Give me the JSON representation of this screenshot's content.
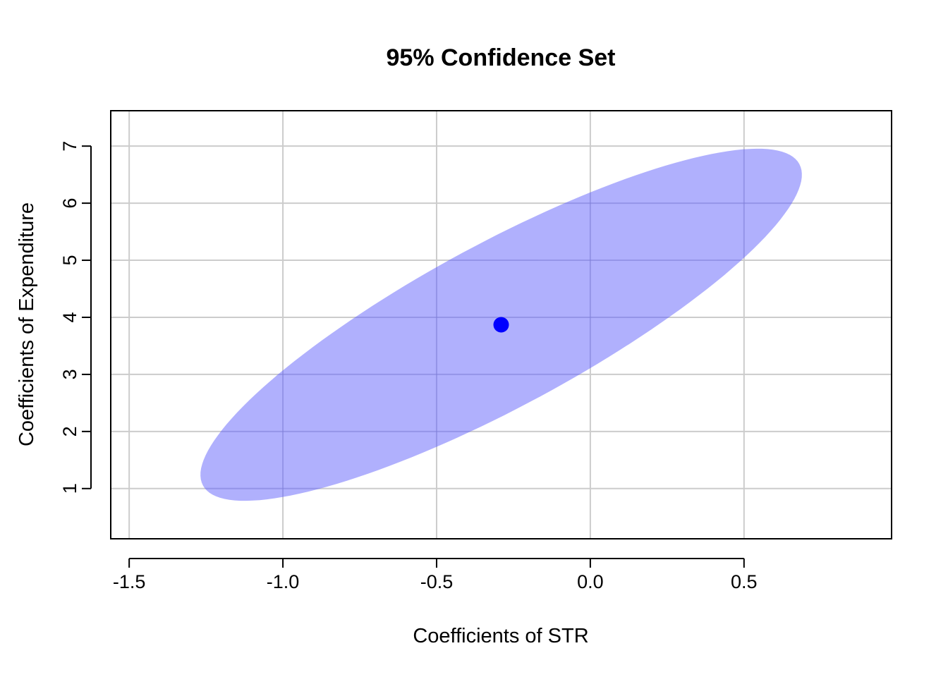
{
  "chart_data": {
    "type": "scatter",
    "title": "95% Confidence Set",
    "xlabel": "Coefficients of STR",
    "ylabel": "Coefficients of Expenditure",
    "xlim": [
      -1.56,
      0.98
    ],
    "ylim": [
      0.12,
      7.62
    ],
    "xticks": [
      -1.5,
      -1.0,
      -0.5,
      0.0,
      0.5
    ],
    "xtick_labels": [
      "-1.5",
      "-1.0",
      "-0.5",
      "0.0",
      "0.5"
    ],
    "yticks": [
      1,
      2,
      3,
      4,
      5,
      6,
      7
    ],
    "ytick_labels": [
      "1",
      "2",
      "3",
      "4",
      "5",
      "6",
      "7"
    ],
    "grid": true,
    "confidence_ellipse": {
      "center": [
        -0.29,
        3.87
      ],
      "semi_axis_major": 1.15,
      "semi_axis_minor": 0.3,
      "y_scale": 4.57,
      "angle_deg": 33,
      "fill_color": "#b0b0fd"
    },
    "point": {
      "x": -0.29,
      "y": 3.87,
      "color": "#0000ff"
    },
    "colors": {
      "grid": "#cccccc",
      "axis": "#000000"
    }
  }
}
